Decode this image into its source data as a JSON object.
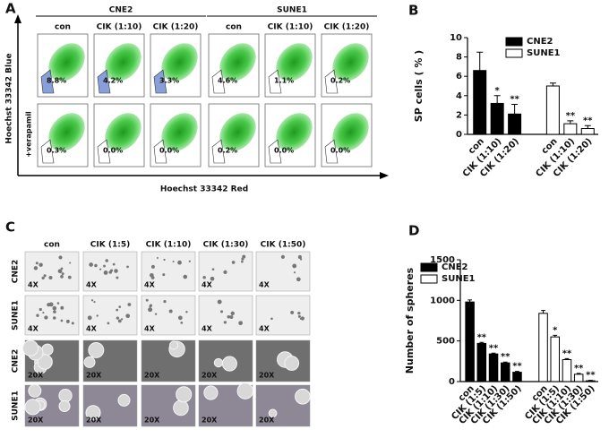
{
  "panel_a": {
    "label": "A",
    "groups": [
      "CNE2",
      "SUNE1"
    ],
    "columns": [
      "con",
      "CIK (1:10)",
      "CIK (1:20)",
      "con",
      "CIK (1:10)",
      "CIK (1:20)"
    ],
    "y_label": "Hoechst 33342 Blue",
    "row_label": "+verapamil",
    "x_label": "Hoechst 33342 Red",
    "percentages": [
      [
        "8.8%",
        "4.2%",
        "3.3%",
        "4.6%",
        "1.1%",
        "0.2%"
      ],
      [
        "0.3%",
        "0.0%",
        "0.0%",
        "0.2%",
        "0.0%",
        "0.0%"
      ]
    ]
  },
  "panel_c": {
    "label": "C",
    "columns": [
      "con",
      "CIK (1:5)",
      "CIK (1:10)",
      "CIK (1:30)",
      "CIK (1:50)"
    ],
    "rows": [
      {
        "name": "CNE2",
        "magnification": "4X"
      },
      {
        "name": "SUNE1",
        "magnification": "4X"
      },
      {
        "name": "CNE2",
        "magnification": "20X"
      },
      {
        "name": "SUNE1",
        "magnification": "20X"
      }
    ]
  },
  "chart_data": [
    {
      "type": "bar",
      "panel": "B",
      "ylabel": "SP cells ( % )",
      "categories": [
        "con",
        "CIK (1:10)",
        "CIK (1:20)",
        "con",
        "CIK (1:10)",
        "CIK (1:20)"
      ],
      "series": [
        {
          "name": "CNE2",
          "color": "#000000",
          "values": [
            6.6,
            3.2,
            2.1,
            null,
            null,
            null
          ],
          "errors": [
            1.9,
            0.8,
            1.0,
            null,
            null,
            null
          ],
          "significance": [
            null,
            "*",
            "**",
            null,
            null,
            null
          ]
        },
        {
          "name": "SUNE1",
          "color": "#ffffff",
          "values": [
            null,
            null,
            null,
            5.0,
            1.1,
            0.6
          ],
          "errors": [
            null,
            null,
            null,
            0.3,
            0.3,
            0.3
          ],
          "significance": [
            null,
            null,
            null,
            null,
            "**",
            "**"
          ]
        }
      ],
      "ylim": [
        0,
        10
      ],
      "yticks": [
        0,
        2,
        4,
        6,
        8,
        10
      ],
      "legend": "top-right"
    },
    {
      "type": "bar",
      "panel": "D",
      "ylabel": "Number of spheres",
      "categories": [
        "con",
        "CIK (1:5)",
        "CIK (1:10)",
        "CIK (1:30)",
        "CIK (1:50)",
        "con",
        "CIK (1:5)",
        "CIK (1:10)",
        "CIK (1:30)",
        "CIK (1:50)"
      ],
      "series": [
        {
          "name": "CNE2",
          "color": "#000000",
          "values": [
            980,
            470,
            340,
            230,
            115,
            null,
            null,
            null,
            null,
            null
          ],
          "errors": [
            25,
            12,
            10,
            10,
            10,
            null,
            null,
            null,
            null,
            null
          ],
          "significance": [
            null,
            "**",
            "**",
            "**",
            "**",
            null,
            null,
            null,
            null,
            null
          ]
        },
        {
          "name": "SUNE1",
          "color": "#ffffff",
          "values": [
            null,
            null,
            null,
            null,
            null,
            840,
            550,
            270,
            90,
            10
          ],
          "errors": [
            null,
            null,
            null,
            null,
            null,
            35,
            20,
            12,
            10,
            5
          ],
          "significance": [
            null,
            null,
            null,
            null,
            null,
            null,
            "*",
            "**",
            "**",
            "**"
          ]
        }
      ],
      "ylim": [
        0,
        1500
      ],
      "yticks": [
        0,
        500,
        1000,
        1500
      ],
      "legend": "top-left"
    }
  ]
}
